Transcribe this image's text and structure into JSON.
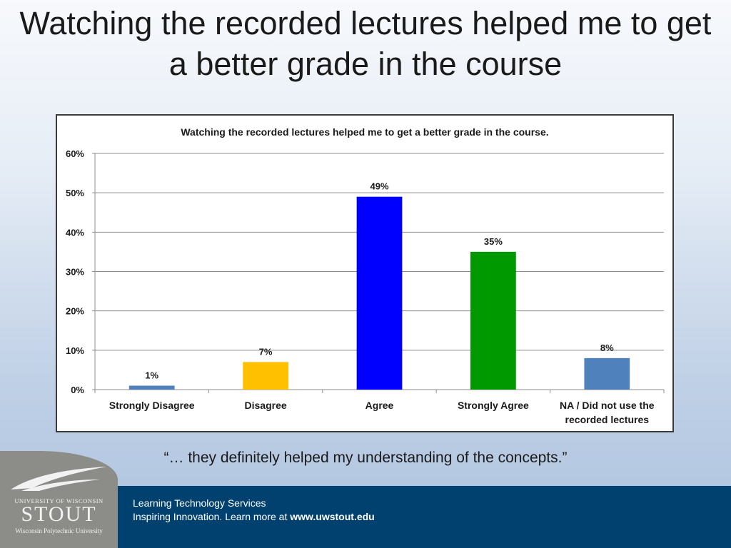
{
  "slide": {
    "title": "Watching the recorded lectures helped me to get a better grade in the course",
    "quote": "“… they definitely helped my understanding of the concepts.”"
  },
  "footer": {
    "line1": "Learning Technology Services",
    "line2_text": "Inspiring Innovation.  Learn more at ",
    "line2_link": "www.uwstout.edu",
    "background": "#00416f"
  },
  "logo": {
    "top": "UNIVERSITY OF WISCONSIN",
    "name": "STOUT",
    "sub": "Wisconsin Polytechnic University"
  },
  "chart_data": {
    "type": "bar",
    "title": "Watching the recorded lectures helped me to get a better grade in the course.",
    "categories": [
      [
        "Strongly Disagree"
      ],
      [
        "Disagree"
      ],
      [
        "Agree"
      ],
      [
        "Strongly Agree"
      ],
      [
        "NA / Did not use the",
        "recorded lectures"
      ]
    ],
    "values": [
      1,
      7,
      49,
      35,
      8
    ],
    "value_labels": [
      "1%",
      "7%",
      "49%",
      "35%",
      "8%"
    ],
    "colors": [
      "#4f81bd",
      "#ffc000",
      "#0000ff",
      "#009900",
      "#4f81bd"
    ],
    "y_ticks": [
      "0%",
      "10%",
      "20%",
      "30%",
      "40%",
      "50%",
      "60%"
    ],
    "ylim": [
      0,
      60
    ],
    "grid": true,
    "legend": "none"
  }
}
